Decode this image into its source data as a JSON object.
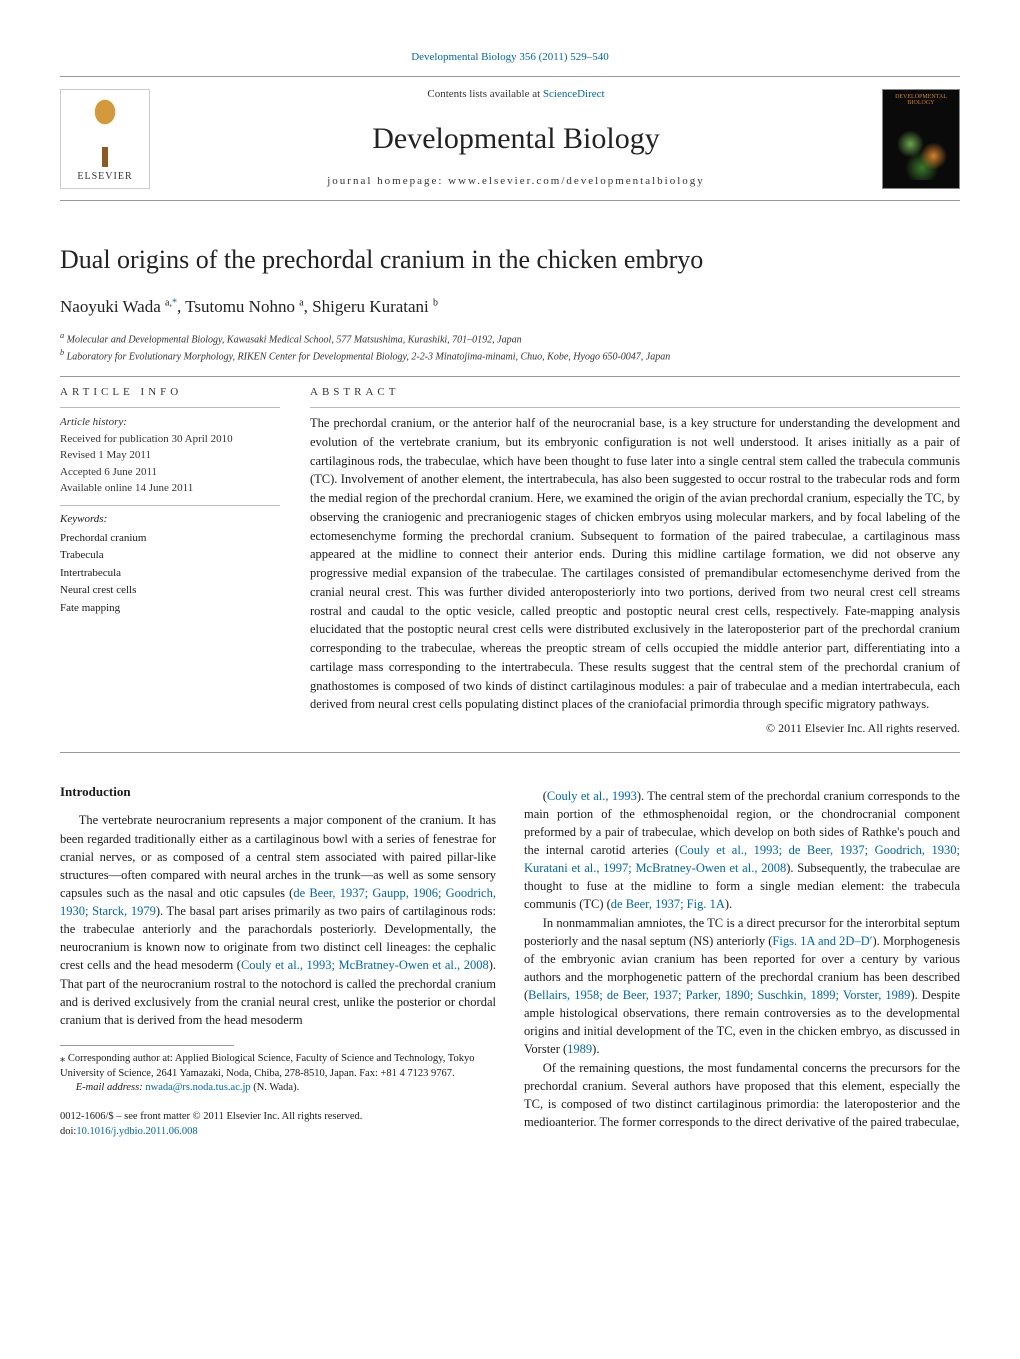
{
  "header": {
    "journal_ref": "Developmental Biology 356 (2011) 529–540",
    "contents_line_prefix": "Contents lists available at ",
    "contents_line_link": "ScienceDirect",
    "journal_title": "Developmental Biology",
    "homepage_prefix": "journal homepage: ",
    "homepage_url": "www.elsevier.com/developmentalbiology",
    "elsevier_label": "ELSEVIER",
    "cover_thumb_text": "DEVELOPMENTAL BIOLOGY"
  },
  "article": {
    "title": "Dual origins of the prechordal cranium in the chicken embryo",
    "authors_html": [
      "Naoyuki Wada ",
      "a,",
      "*",
      ", Tsutomu Nohno ",
      "a",
      ", Shigeru Kuratani ",
      "b"
    ],
    "affiliations": {
      "a": "Molecular and Developmental Biology, Kawasaki Medical School, 577 Matsushima, Kurashiki, 701–0192, Japan",
      "b": "Laboratory for Evolutionary Morphology, RIKEN Center for Developmental Biology, 2-2-3 Minatojima-minami, Chuo, Kobe, Hyogo 650-0047, Japan"
    }
  },
  "info": {
    "label": "ARTICLE INFO",
    "history_label": "Article history:",
    "history": [
      "Received for publication 30 April 2010",
      "Revised 1 May 2011",
      "Accepted 6 June 2011",
      "Available online 14 June 2011"
    ],
    "keywords_label": "Keywords:",
    "keywords": [
      "Prechordal cranium",
      "Trabecula",
      "Intertrabecula",
      "Neural crest cells",
      "Fate mapping"
    ]
  },
  "abstract": {
    "label": "ABSTRACT",
    "text": "The prechordal cranium, or the anterior half of the neurocranial base, is a key structure for understanding the development and evolution of the vertebrate cranium, but its embryonic configuration is not well understood. It arises initially as a pair of cartilaginous rods, the trabeculae, which have been thought to fuse later into a single central stem called the trabecula communis (TC). Involvement of another element, the intertrabecula, has also been suggested to occur rostral to the trabecular rods and form the medial region of the prechordal cranium. Here, we examined the origin of the avian prechordal cranium, especially the TC, by observing the craniogenic and precraniogenic stages of chicken embryos using molecular markers, and by focal labeling of the ectomesenchyme forming the prechordal cranium. Subsequent to formation of the paired trabeculae, a cartilaginous mass appeared at the midline to connect their anterior ends. During this midline cartilage formation, we did not observe any progressive medial expansion of the trabeculae. The cartilages consisted of premandibular ectomesenchyme derived from the cranial neural crest. This was further divided anteroposteriorly into two portions, derived from two neural crest cell streams rostral and caudal to the optic vesicle, called preoptic and postoptic neural crest cells, respectively. Fate-mapping analysis elucidated that the postoptic neural crest cells were distributed exclusively in the lateroposterior part of the prechordal cranium corresponding to the trabeculae, whereas the preoptic stream of cells occupied the middle anterior part, differentiating into a cartilage mass corresponding to the intertrabecula. These results suggest that the central stem of the prechordal cranium of gnathostomes is composed of two kinds of distinct cartilaginous modules: a pair of trabeculae and a median intertrabecula, each derived from neural crest cells populating distinct places of the craniofacial primordia through specific migratory pathways.",
    "copyright": "© 2011 Elsevier Inc. All rights reserved."
  },
  "body": {
    "intro_heading": "Introduction",
    "left_paragraphs": [
      "The vertebrate neurocranium represents a major component of the cranium. It has been regarded traditionally either as a cartilaginous bowl with a series of fenestrae for cranial nerves, or as composed of a central stem associated with paired pillar-like structures—often compared with neural arches in the trunk—as well as some sensory capsules such as the nasal and otic capsules (de Beer, 1937; Gaupp, 1906; Goodrich, 1930; Starck, 1979). The basal part arises primarily as two pairs of cartilaginous rods: the trabeculae anteriorly and the parachordals posteriorly. Developmentally, the neurocranium is known now to originate from two distinct cell lineages: the cephalic crest cells and the head mesoderm (Couly et al., 1993; McBratney-Owen et al., 2008). That part of the neurocranium rostral to the notochord is called the prechordal cranium and is derived exclusively from the cranial neural crest, unlike the posterior or chordal cranium that is derived from the head mesoderm"
    ],
    "right_paragraphs": [
      "(Couly et al., 1993). The central stem of the prechordal cranium corresponds to the main portion of the ethmosphenoidal region, or the chondrocranial component preformed by a pair of trabeculae, which develop on both sides of Rathke's pouch and the internal carotid arteries (Couly et al., 1993; de Beer, 1937; Goodrich, 1930; Kuratani et al., 1997; McBratney-Owen et al., 2008). Subsequently, the trabeculae are thought to fuse at the midline to form a single median element: the trabecula communis (TC) (de Beer, 1937; Fig. 1A).",
      "In nonmammalian amniotes, the TC is a direct precursor for the interorbital septum posteriorly and the nasal septum (NS) anteriorly (Figs. 1A and 2D–D′). Morphogenesis of the embryonic avian cranium has been reported for over a century by various authors and the morphogenetic pattern of the prechordal cranium has been described (Bellairs, 1958; de Beer, 1937; Parker, 1890; Suschkin, 1899; Vorster, 1989). Despite ample histological observations, there remain controversies as to the developmental origins and initial development of the TC, even in the chicken embryo, as discussed in Vorster (1989).",
      "Of the remaining questions, the most fundamental concerns the precursors for the prechordal cranium. Several authors have proposed that this element, especially the TC, is composed of two distinct cartilaginous primordia: the lateroposterior and the medioanterior. The former corresponds to the direct derivative of the paired trabeculae,"
    ]
  },
  "footnotes": {
    "corresponding": "Corresponding author at: Applied Biological Science, Faculty of Science and Technology, Tokyo University of Science, 2641 Yamazaki, Noda, Chiba, 278-8510, Japan. Fax: +81 4 7123 9767.",
    "email_label": "E-mail address:",
    "email": "nwada@rs.noda.tus.ac.jp",
    "email_paren": "(N. Wada)."
  },
  "bottom": {
    "issn_line": "0012-1606/$ – see front matter © 2011 Elsevier Inc. All rights reserved.",
    "doi_prefix": "doi:",
    "doi": "10.1016/j.ydbio.2011.06.008"
  },
  "colors": {
    "link": "#0066aa",
    "text": "#1a1a1a",
    "rule": "#999999"
  }
}
